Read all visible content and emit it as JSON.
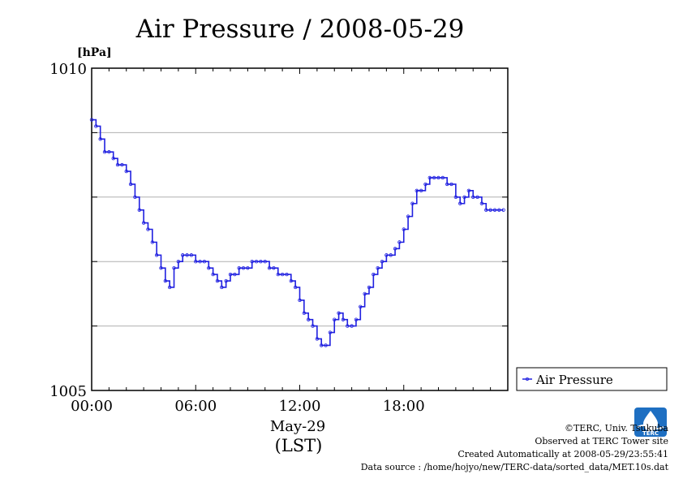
{
  "chart_data": {
    "type": "line",
    "title": "Air Pressure / 2008-05-29",
    "ylabel": "[hPa]",
    "xlabel": "May-29",
    "xlabel2": "(LST)",
    "ylim": [
      1005,
      1010
    ],
    "xlim": [
      0,
      24
    ],
    "x_ticks": [
      {
        "x": 0,
        "label": "00:00"
      },
      {
        "x": 6,
        "label": "06:00"
      },
      {
        "x": 12,
        "label": "12:00"
      },
      {
        "x": 18,
        "label": "18:00"
      }
    ],
    "y_ticks": [
      {
        "y": 1005,
        "label": "1005"
      },
      {
        "y": 1010,
        "label": "1010"
      }
    ],
    "grid": true,
    "legend_position": "bottom-right",
    "series": [
      {
        "name": "Air Pressure",
        "color": "#2020e0",
        "x": [
          0.0,
          0.25,
          0.5,
          0.75,
          1.0,
          1.25,
          1.5,
          1.75,
          2.0,
          2.25,
          2.5,
          2.75,
          3.0,
          3.25,
          3.5,
          3.75,
          4.0,
          4.25,
          4.5,
          4.75,
          5.0,
          5.25,
          5.5,
          5.75,
          6.0,
          6.25,
          6.5,
          6.75,
          7.0,
          7.25,
          7.5,
          7.75,
          8.0,
          8.25,
          8.5,
          8.75,
          9.0,
          9.25,
          9.5,
          9.75,
          10.0,
          10.25,
          10.5,
          10.75,
          11.0,
          11.25,
          11.5,
          11.75,
          12.0,
          12.25,
          12.5,
          12.75,
          13.0,
          13.25,
          13.5,
          13.75,
          14.0,
          14.25,
          14.5,
          14.75,
          15.0,
          15.25,
          15.5,
          15.75,
          16.0,
          16.25,
          16.5,
          16.75,
          17.0,
          17.25,
          17.5,
          17.75,
          18.0,
          18.25,
          18.5,
          18.75,
          19.0,
          19.25,
          19.5,
          19.75,
          20.0,
          20.25,
          20.5,
          20.75,
          21.0,
          21.25,
          21.5,
          21.75,
          22.0,
          22.25,
          22.5,
          22.75,
          23.0,
          23.25,
          23.5,
          23.75
        ],
        "values": [
          1009.2,
          1009.1,
          1008.9,
          1008.7,
          1008.7,
          1008.6,
          1008.5,
          1008.5,
          1008.4,
          1008.2,
          1008.0,
          1007.8,
          1007.6,
          1007.5,
          1007.3,
          1007.1,
          1006.9,
          1006.7,
          1006.6,
          1006.9,
          1007.0,
          1007.1,
          1007.1,
          1007.1,
          1007.0,
          1007.0,
          1007.0,
          1006.9,
          1006.8,
          1006.7,
          1006.6,
          1006.7,
          1006.8,
          1006.8,
          1006.9,
          1006.9,
          1006.9,
          1007.0,
          1007.0,
          1007.0,
          1007.0,
          1006.9,
          1006.9,
          1006.8,
          1006.8,
          1006.8,
          1006.7,
          1006.6,
          1006.4,
          1006.2,
          1006.1,
          1006.0,
          1005.8,
          1005.7,
          1005.7,
          1005.9,
          1006.1,
          1006.2,
          1006.1,
          1006.0,
          1006.0,
          1006.1,
          1006.3,
          1006.5,
          1006.6,
          1006.8,
          1006.9,
          1007.0,
          1007.1,
          1007.1,
          1007.2,
          1007.3,
          1007.5,
          1007.7,
          1007.9,
          1008.1,
          1008.1,
          1008.2,
          1008.3,
          1008.3,
          1008.3,
          1008.3,
          1008.2,
          1008.2,
          1008.0,
          1007.9,
          1008.0,
          1008.1,
          1008.0,
          1008.0,
          1007.9,
          1007.8,
          1007.8,
          1007.8,
          1007.8,
          1007.8
        ]
      }
    ],
    "legend_label": "Air Pressure"
  },
  "credits": {
    "copyright": "©TERC, Univ. Tsukuba",
    "observed": "Observed at TERC Tower site",
    "created": "Created Automatically at 2008-05-29/23:55:41",
    "source": "Data source : /home/hojyo/new/TERC-data/sorted_data/MET.10s.dat"
  },
  "logo_text": "TERC"
}
